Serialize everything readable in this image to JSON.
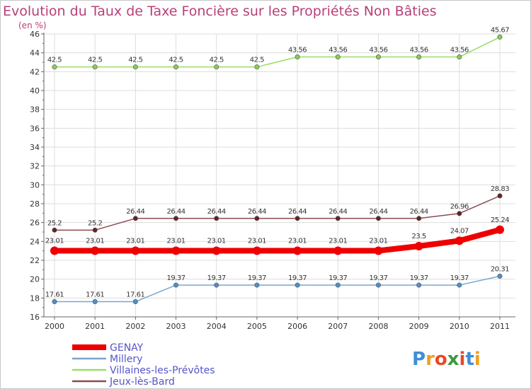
{
  "chart_data": {
    "type": "line",
    "title": "Evolution du Taux de Taxe Foncière sur les Propriétés Non Bâties",
    "unit_label": "(en %)",
    "categories": [
      "2000",
      "2001",
      "2002",
      "2003",
      "2004",
      "2005",
      "2006",
      "2007",
      "2008",
      "2009",
      "2010",
      "2011"
    ],
    "ylim": [
      16,
      46
    ],
    "y_ticks": [
      16,
      18,
      20,
      22,
      24,
      26,
      28,
      30,
      32,
      34,
      36,
      38,
      40,
      42,
      44,
      46
    ],
    "grid": true,
    "series": [
      {
        "name": "Villaines-les-Prévôtes",
        "color": "#99dd66",
        "marker": "#88cc55",
        "emphasis": false,
        "values": [
          42.5,
          42.5,
          42.5,
          42.5,
          42.5,
          42.5,
          43.56,
          43.56,
          43.56,
          43.56,
          43.56,
          45.67
        ],
        "labels": [
          "42.5",
          "42.5",
          "42.5",
          "42.5",
          "42.5",
          "42.5",
          "43.56",
          "43.56",
          "43.56",
          "43.56",
          "43.56",
          "45.67"
        ]
      },
      {
        "name": "Jeux-lès-Bard",
        "color": "#8b4a52",
        "marker": "#662222",
        "emphasis": false,
        "values": [
          25.2,
          25.2,
          26.44,
          26.44,
          26.44,
          26.44,
          26.44,
          26.44,
          26.44,
          26.44,
          26.96,
          28.83
        ],
        "labels": [
          "25.2",
          "25.2",
          "26.44",
          "26.44",
          "26.44",
          "26.44",
          "26.44",
          "26.44",
          "26.44",
          "26.44",
          "26.96",
          "28.83"
        ]
      },
      {
        "name": "GENAY",
        "color": "#ee0000",
        "marker": "#ee0000",
        "emphasis": true,
        "values": [
          23.01,
          23.01,
          23.01,
          23.01,
          23.01,
          23.01,
          23.01,
          23.01,
          23.01,
          23.5,
          24.07,
          25.24
        ],
        "labels": [
          "23.01",
          "23.01",
          "23.01",
          "23.01",
          "23.01",
          "23.01",
          "23.01",
          "23.01",
          "23.01",
          "23.5",
          "24.07",
          "25.24"
        ]
      },
      {
        "name": "Millery",
        "color": "#7aa6cc",
        "marker": "#4f8fc8",
        "emphasis": false,
        "values": [
          17.61,
          17.61,
          17.61,
          19.37,
          19.37,
          19.37,
          19.37,
          19.37,
          19.37,
          19.37,
          19.37,
          20.31
        ],
        "labels": [
          "17.61",
          "17.61",
          "17.61",
          "19.37",
          "19.37",
          "19.37",
          "19.37",
          "19.37",
          "19.37",
          "19.37",
          "19.37",
          "20.31"
        ]
      }
    ],
    "legend": [
      "GENAY",
      "Millery",
      "Villaines-les-Prévôtes",
      "Jeux-lès-Bard"
    ],
    "legend_position": "bottom-left"
  },
  "logo": {
    "letters": [
      "P",
      "r",
      "o",
      "x",
      "i",
      "t",
      "i"
    ],
    "colors": [
      "#3f8fd8",
      "#f0a020",
      "#e84a2a",
      "#3a9a3a",
      "#e84a2a",
      "#3f8fd8",
      "#f0a020"
    ]
  }
}
